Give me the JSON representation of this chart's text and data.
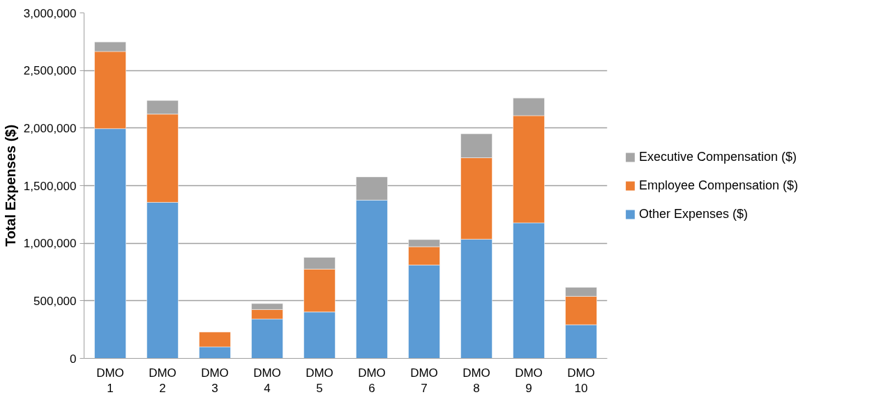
{
  "chart_data": {
    "type": "bar",
    "stacked": true,
    "ylabel": "Total Expenses ($)",
    "categories": [
      "DMO 1",
      "DMO 2",
      "DMO 3",
      "DMO 4",
      "DMO 5",
      "DMO 6",
      "DMO 7",
      "DMO 8",
      "DMO 9",
      "DMO 10"
    ],
    "series": [
      {
        "name": "Other Expenses ($)",
        "color": "#5b9bd5",
        "values": [
          1995000,
          1355000,
          100000,
          342000,
          403000,
          1374000,
          810000,
          1035000,
          1177000,
          292000
        ]
      },
      {
        "name": "Employee Compensation ($)",
        "color": "#ed7d31",
        "values": [
          670000,
          766000,
          129000,
          82000,
          372000,
          null,
          160000,
          707000,
          931000,
          247000
        ]
      },
      {
        "name": "Executive Compensation ($)",
        "color": "#a5a5a5",
        "values": [
          83000,
          119000,
          null,
          52000,
          102000,
          202000,
          62000,
          208000,
          152000,
          78000
        ]
      }
    ],
    "ylim": [
      0,
      3000000
    ],
    "yticks": [
      {
        "value": 0,
        "label": "0"
      },
      {
        "value": 500000,
        "label": "500,000"
      },
      {
        "value": 1000000,
        "label": "1,000,000"
      },
      {
        "value": 1500000,
        "label": "1,500,000"
      },
      {
        "value": 2000000,
        "label": "2,000,000"
      },
      {
        "value": 2500000,
        "label": "2,500,000"
      },
      {
        "value": 3000000,
        "label": "3,000,000"
      }
    ],
    "grid": "y",
    "legend": "right"
  }
}
